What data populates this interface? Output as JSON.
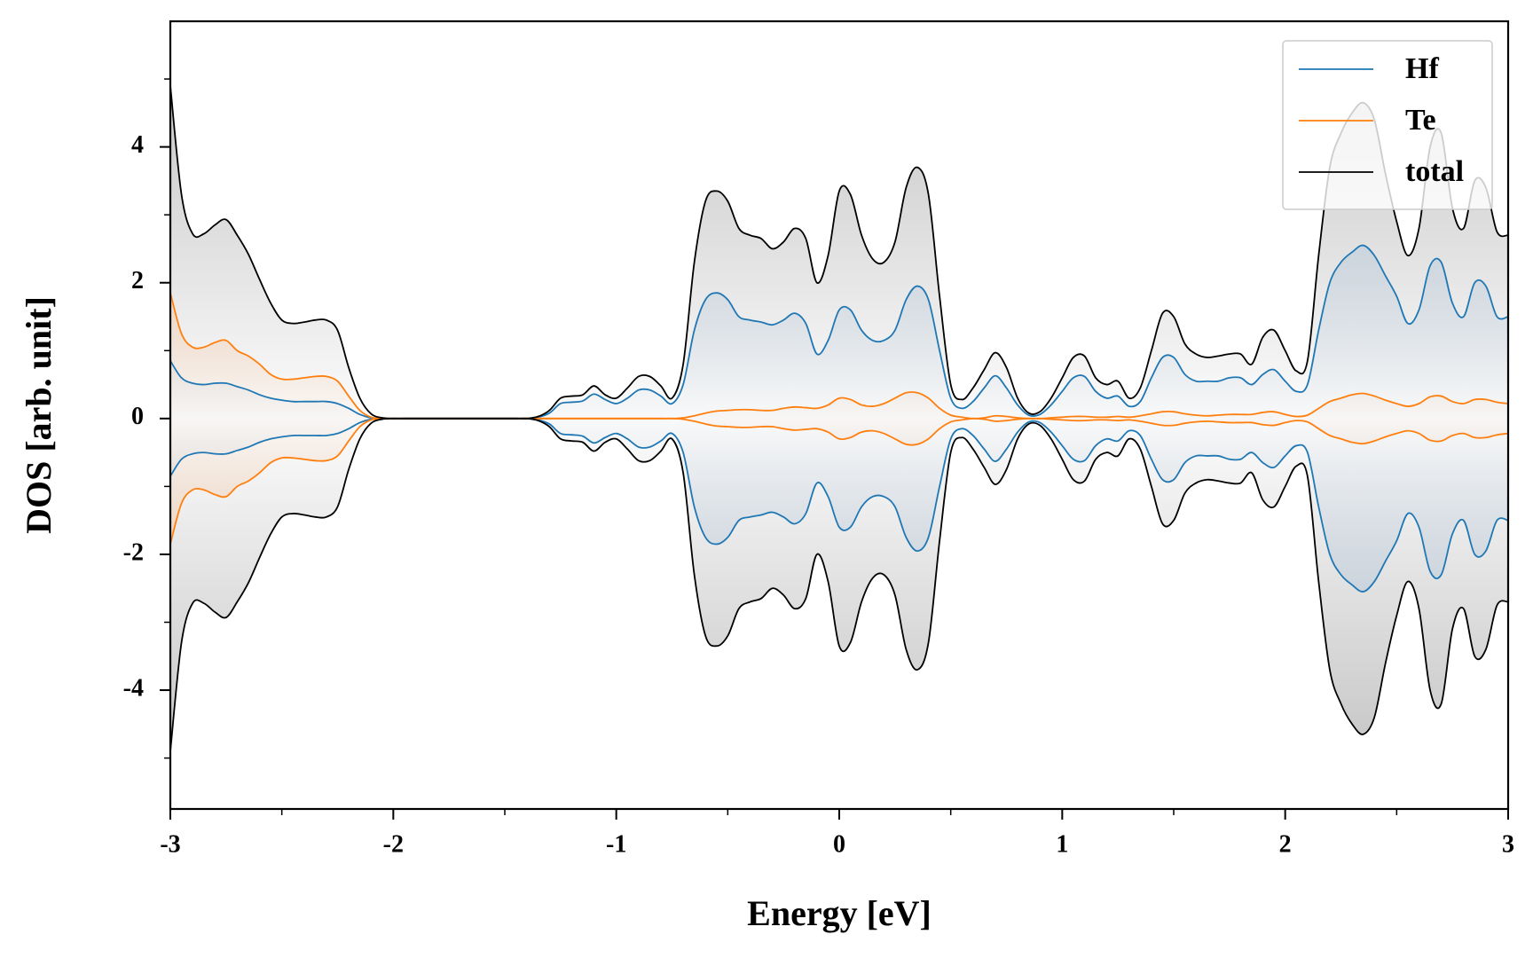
{
  "chart_data": {
    "type": "line",
    "xlabel": "Energy [eV]",
    "ylabel": "DOS [arb. unit]",
    "xlim": [
      -3,
      3
    ],
    "ylim": [
      -5.75,
      5.85
    ],
    "xticks": [
      -3,
      -2,
      -1,
      0,
      1,
      2,
      3
    ],
    "xticks_minor": [
      -2.5,
      -1.5,
      -0.5,
      0.5,
      1.5,
      2.5
    ],
    "yticks": [
      -4,
      -2,
      0,
      2,
      4
    ],
    "yticks_minor": [
      -5,
      -3,
      -1,
      1,
      3,
      5
    ],
    "legend": "upper right",
    "x": [
      -3,
      -2.95,
      -2.9,
      -2.85,
      -2.8,
      -2.75,
      -2.7,
      -2.65,
      -2.6,
      -2.55,
      -2.5,
      -2.45,
      -2.4,
      -2.35,
      -2.3,
      -2.25,
      -2.2,
      -2.15,
      -2.1,
      -2.05,
      -2,
      -1.95,
      -1.9,
      -1.85,
      -1.8,
      -1.75,
      -1.7,
      -1.65,
      -1.6,
      -1.55,
      -1.5,
      -1.45,
      -1.4,
      -1.35,
      -1.3,
      -1.25,
      -1.2,
      -1.15,
      -1.1,
      -1.05,
      -1,
      -0.95,
      -0.9,
      -0.85,
      -0.8,
      -0.75,
      -0.7,
      -0.65,
      -0.6,
      -0.55,
      -0.5,
      -0.45,
      -0.4,
      -0.35,
      -0.3,
      -0.25,
      -0.2,
      -0.15,
      -0.1,
      -0.05,
      0,
      0.05,
      0.1,
      0.15,
      0.2,
      0.25,
      0.3,
      0.35,
      0.4,
      0.45,
      0.5,
      0.55,
      0.6,
      0.65,
      0.7,
      0.75,
      0.8,
      0.85,
      0.9,
      0.95,
      1,
      1.05,
      1.1,
      1.15,
      1.2,
      1.25,
      1.3,
      1.35,
      1.4,
      1.45,
      1.5,
      1.55,
      1.6,
      1.65,
      1.7,
      1.75,
      1.8,
      1.85,
      1.9,
      1.95,
      2,
      2.05,
      2.1,
      2.15,
      2.2,
      2.25,
      2.3,
      2.35,
      2.4,
      2.45,
      2.5,
      2.55,
      2.6,
      2.65,
      2.7,
      2.75,
      2.8,
      2.85,
      2.9,
      2.95,
      3
    ],
    "series": [
      {
        "name": "Hf",
        "color": "#1f77b4",
        "fill": "#b7c8d9",
        "values": [
          0.85,
          0.6,
          0.52,
          0.5,
          0.52,
          0.52,
          0.47,
          0.42,
          0.35,
          0.3,
          0.27,
          0.25,
          0.25,
          0.25,
          0.25,
          0.22,
          0.15,
          0.06,
          0.01,
          0,
          0,
          0,
          0,
          0,
          0,
          0,
          0,
          0,
          0,
          0,
          0,
          0,
          0,
          0.02,
          0.08,
          0.22,
          0.24,
          0.26,
          0.36,
          0.28,
          0.22,
          0.3,
          0.42,
          0.42,
          0.33,
          0.22,
          0.5,
          1.3,
          1.75,
          1.85,
          1.75,
          1.5,
          1.45,
          1.42,
          1.38,
          1.45,
          1.55,
          1.4,
          0.95,
          1.15,
          1.6,
          1.6,
          1.3,
          1.15,
          1.15,
          1.3,
          1.75,
          1.95,
          1.75,
          1,
          0.3,
          0.15,
          0.25,
          0.45,
          0.63,
          0.45,
          0.2,
          0.05,
          0.06,
          0.2,
          0.4,
          0.6,
          0.62,
          0.4,
          0.3,
          0.33,
          0.18,
          0.25,
          0.6,
          0.9,
          0.9,
          0.65,
          0.55,
          0.55,
          0.55,
          0.6,
          0.6,
          0.5,
          0.65,
          0.72,
          0.55,
          0.4,
          0.5,
          1.3,
          2,
          2.3,
          2.45,
          2.55,
          2.4,
          2.1,
          1.8,
          1.4,
          1.6,
          2.25,
          2.3,
          1.7,
          1.5,
          2,
          1.95,
          1.5,
          1.5
        ],
        "values_down": [
          -0.85,
          -0.6,
          -0.52,
          -0.5,
          -0.52,
          -0.52,
          -0.47,
          -0.42,
          -0.35,
          -0.3,
          -0.27,
          -0.25,
          -0.25,
          -0.25,
          -0.25,
          -0.22,
          -0.15,
          -0.06,
          -0.01,
          0,
          0,
          0,
          0,
          0,
          0,
          0,
          0,
          0,
          0,
          0,
          0,
          0,
          0,
          -0.02,
          -0.08,
          -0.22,
          -0.24,
          -0.26,
          -0.36,
          -0.28,
          -0.22,
          -0.3,
          -0.42,
          -0.42,
          -0.33,
          -0.22,
          -0.5,
          -1.3,
          -1.75,
          -1.85,
          -1.75,
          -1.5,
          -1.45,
          -1.42,
          -1.38,
          -1.45,
          -1.55,
          -1.4,
          -0.95,
          -1.15,
          -1.6,
          -1.6,
          -1.3,
          -1.15,
          -1.15,
          -1.3,
          -1.75,
          -1.95,
          -1.75,
          -1,
          -0.3,
          -0.15,
          -0.25,
          -0.45,
          -0.63,
          -0.45,
          -0.2,
          -0.05,
          -0.06,
          -0.2,
          -0.4,
          -0.6,
          -0.62,
          -0.4,
          -0.3,
          -0.33,
          -0.18,
          -0.25,
          -0.6,
          -0.9,
          -0.9,
          -0.65,
          -0.55,
          -0.55,
          -0.55,
          -0.6,
          -0.6,
          -0.5,
          -0.65,
          -0.72,
          -0.55,
          -0.4,
          -0.5,
          -1.3,
          -2,
          -2.3,
          -2.45,
          -2.55,
          -2.4,
          -2.1,
          -1.8,
          -1.4,
          -1.6,
          -2.25,
          -2.3,
          -1.7,
          -1.5,
          -2,
          -1.95,
          -1.5,
          -1.5
        ]
      },
      {
        "name": "Te",
        "color": "#ff7f0e",
        "fill": "#f4b98a",
        "values": [
          1.85,
          1.25,
          1.05,
          1.05,
          1.12,
          1.15,
          1,
          0.92,
          0.8,
          0.65,
          0.58,
          0.58,
          0.6,
          0.62,
          0.62,
          0.55,
          0.33,
          0.12,
          0.02,
          0,
          0,
          0,
          0,
          0,
          0,
          0,
          0,
          0,
          0,
          0,
          0,
          0,
          0,
          0,
          0,
          0,
          0,
          0,
          0,
          0,
          0,
          0,
          0,
          0,
          0,
          0,
          0.01,
          0.04,
          0.08,
          0.11,
          0.12,
          0.13,
          0.13,
          0.12,
          0.12,
          0.15,
          0.17,
          0.16,
          0.15,
          0.2,
          0.3,
          0.28,
          0.2,
          0.18,
          0.22,
          0.3,
          0.38,
          0.38,
          0.3,
          0.15,
          0.05,
          0.02,
          0,
          0.01,
          0.04,
          0.03,
          0.01,
          0,
          0,
          0.01,
          0.02,
          0.03,
          0.03,
          0.02,
          0.02,
          0.03,
          0.02,
          0.04,
          0.07,
          0.1,
          0.1,
          0.07,
          0.05,
          0.04,
          0.05,
          0.06,
          0.06,
          0.06,
          0.09,
          0.1,
          0.06,
          0.03,
          0.05,
          0.15,
          0.25,
          0.3,
          0.35,
          0.37,
          0.33,
          0.27,
          0.22,
          0.18,
          0.22,
          0.32,
          0.33,
          0.25,
          0.22,
          0.28,
          0.28,
          0.24,
          0.22
        ],
        "values_down": [
          -1.85,
          -1.25,
          -1.05,
          -1.05,
          -1.12,
          -1.15,
          -1,
          -0.92,
          -0.8,
          -0.65,
          -0.58,
          -0.58,
          -0.6,
          -0.62,
          -0.62,
          -0.55,
          -0.33,
          -0.12,
          -0.02,
          0,
          0,
          0,
          0,
          0,
          0,
          0,
          0,
          0,
          0,
          0,
          0,
          0,
          0,
          0,
          0,
          0,
          0,
          0,
          0,
          0,
          0,
          0,
          0,
          0,
          0,
          0,
          -0.01,
          -0.04,
          -0.08,
          -0.11,
          -0.12,
          -0.13,
          -0.13,
          -0.12,
          -0.12,
          -0.15,
          -0.17,
          -0.16,
          -0.15,
          -0.2,
          -0.3,
          -0.28,
          -0.2,
          -0.18,
          -0.22,
          -0.3,
          -0.38,
          -0.38,
          -0.3,
          -0.15,
          -0.05,
          -0.02,
          0,
          -0.01,
          -0.04,
          -0.03,
          -0.01,
          0,
          0,
          -0.01,
          -0.02,
          -0.03,
          -0.03,
          -0.02,
          -0.02,
          -0.03,
          -0.02,
          -0.04,
          -0.07,
          -0.1,
          -0.1,
          -0.07,
          -0.05,
          -0.04,
          -0.05,
          -0.06,
          -0.06,
          -0.06,
          -0.09,
          -0.1,
          -0.06,
          -0.03,
          -0.05,
          -0.15,
          -0.25,
          -0.3,
          -0.35,
          -0.37,
          -0.33,
          -0.27,
          -0.22,
          -0.18,
          -0.22,
          -0.32,
          -0.33,
          -0.25,
          -0.22,
          -0.28,
          -0.28,
          -0.24,
          -0.22
        ]
      },
      {
        "name": "total",
        "color": "#000000",
        "fill": "#c4c4c4",
        "values": [
          4.9,
          3.3,
          2.72,
          2.72,
          2.85,
          2.93,
          2.7,
          2.42,
          2.05,
          1.7,
          1.45,
          1.4,
          1.42,
          1.45,
          1.45,
          1.3,
          0.75,
          0.3,
          0.07,
          0.01,
          0,
          0,
          0,
          0,
          0,
          0,
          0,
          0,
          0,
          0,
          0,
          0,
          0,
          0.03,
          0.12,
          0.3,
          0.33,
          0.35,
          0.48,
          0.35,
          0.3,
          0.45,
          0.62,
          0.62,
          0.48,
          0.3,
          0.8,
          2.3,
          3.2,
          3.35,
          3.2,
          2.8,
          2.7,
          2.65,
          2.5,
          2.6,
          2.8,
          2.65,
          2,
          2.4,
          3.35,
          3.3,
          2.7,
          2.35,
          2.3,
          2.6,
          3.4,
          3.7,
          3.3,
          1.8,
          0.5,
          0.28,
          0.45,
          0.72,
          0.97,
          0.75,
          0.3,
          0.08,
          0.1,
          0.3,
          0.6,
          0.9,
          0.92,
          0.6,
          0.5,
          0.55,
          0.3,
          0.45,
          1,
          1.55,
          1.5,
          1.1,
          0.95,
          0.9,
          0.92,
          0.95,
          0.95,
          0.8,
          1.2,
          1.3,
          1,
          0.7,
          0.85,
          2.4,
          3.7,
          4.2,
          4.5,
          4.65,
          4.4,
          3.6,
          2.9,
          2.4,
          2.8,
          4,
          4.2,
          3.1,
          2.8,
          3.5,
          3.4,
          2.75,
          2.7
        ],
        "values_down": [
          -4.9,
          -3.3,
          -2.72,
          -2.72,
          -2.85,
          -2.93,
          -2.7,
          -2.42,
          -2.05,
          -1.7,
          -1.45,
          -1.4,
          -1.42,
          -1.45,
          -1.45,
          -1.3,
          -0.75,
          -0.3,
          -0.07,
          -0.01,
          0,
          0,
          0,
          0,
          0,
          0,
          0,
          0,
          0,
          0,
          0,
          0,
          0,
          -0.03,
          -0.12,
          -0.3,
          -0.33,
          -0.35,
          -0.48,
          -0.35,
          -0.3,
          -0.45,
          -0.62,
          -0.62,
          -0.48,
          -0.3,
          -0.8,
          -2.3,
          -3.2,
          -3.35,
          -3.2,
          -2.8,
          -2.7,
          -2.65,
          -2.5,
          -2.6,
          -2.8,
          -2.65,
          -2,
          -2.4,
          -3.35,
          -3.3,
          -2.7,
          -2.35,
          -2.3,
          -2.6,
          -3.4,
          -3.7,
          -3.3,
          -1.8,
          -0.5,
          -0.28,
          -0.45,
          -0.72,
          -0.97,
          -0.75,
          -0.3,
          -0.08,
          -0.1,
          -0.3,
          -0.6,
          -0.9,
          -0.92,
          -0.6,
          -0.5,
          -0.55,
          -0.3,
          -0.45,
          -1,
          -1.55,
          -1.5,
          -1.1,
          -0.95,
          -0.9,
          -0.92,
          -0.95,
          -0.95,
          -0.8,
          -1.2,
          -1.3,
          -1,
          -0.7,
          -0.85,
          -2.4,
          -3.7,
          -4.2,
          -4.5,
          -4.65,
          -4.4,
          -3.6,
          -2.9,
          -2.4,
          -2.8,
          -4,
          -4.2,
          -3.1,
          -2.8,
          -3.5,
          -3.4,
          -2.75,
          -2.7
        ]
      }
    ]
  }
}
